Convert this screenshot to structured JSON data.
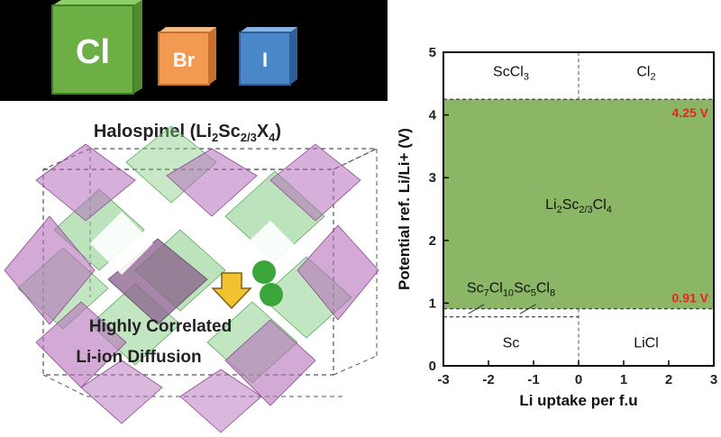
{
  "elements": {
    "cl": {
      "label": "Cl",
      "color": "#6cb045"
    },
    "br": {
      "label": "Br",
      "color": "#f29a52"
    },
    "i": {
      "label": "I",
      "color": "#4a87c8"
    }
  },
  "structure": {
    "title_prefix": "Halospinel (Li",
    "title_sub1": "2",
    "title_mid": "Sc",
    "title_sub2": "2/3",
    "title_mid2": "X",
    "title_sub3": "4",
    "title_suffix": ")",
    "caption_line1": "Highly Correlated",
    "caption_line2": "Li-ion Diffusion",
    "colors": {
      "purple": "#a060a8",
      "green": "#7cc47a",
      "dark_green": "#3aa63a",
      "arrow": "#f2c230"
    }
  },
  "chart_data": {
    "type": "area",
    "xlabel": "Li uptake per f.u",
    "ylabel": "Potential ref. Li/Li+ (V)",
    "xlim": [
      -3,
      3
    ],
    "ylim": [
      0,
      5
    ],
    "xticks": [
      "-3",
      "-2",
      "-1",
      "0",
      "1",
      "2",
      "3"
    ],
    "yticks": [
      "0",
      "1",
      "2",
      "3",
      "4",
      "5"
    ],
    "stable_window": {
      "low": 0.91,
      "high": 4.25,
      "color": "#8ab665"
    },
    "upper_label": "4.25 V",
    "lower_label": "0.91 V",
    "label_color": "#e8241d",
    "divider_x": 0,
    "lower_dash_y": 0.78,
    "region_labels": {
      "sccl3": {
        "base": "ScCl",
        "sub": "3",
        "x": -1.5,
        "y": 4.62
      },
      "cl2": {
        "base": "Cl",
        "sub": "2",
        "x": 1.5,
        "y": 4.62
      },
      "phase": {
        "base": "Li",
        "sub1": "2",
        "mid": "Sc",
        "sub2": "2/3",
        "mid2": "Cl",
        "sub3": "4",
        "x": 0,
        "y": 2.5
      },
      "decomp": {
        "a": "Sc",
        "s1": "7",
        "b": "Cl",
        "s2": "10",
        "c": "Sc",
        "s3": "5",
        "d": "Cl",
        "s4": "8",
        "x": -1.5,
        "y": 1.17
      },
      "sc": {
        "text": "Sc",
        "x": -1.5,
        "y": 0.38
      },
      "licl": {
        "text": "LiCl",
        "x": 1.5,
        "y": 0.38
      }
    }
  }
}
